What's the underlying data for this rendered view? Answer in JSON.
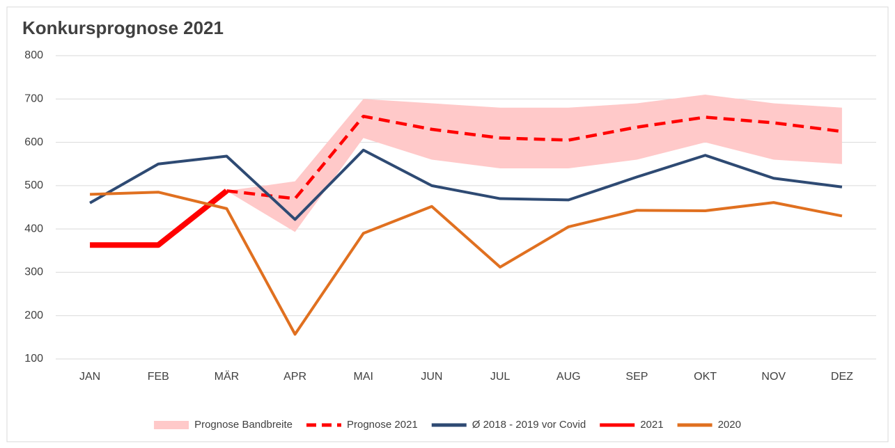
{
  "chart_data": {
    "type": "line",
    "title": "Konkursprognose 2021",
    "categories": [
      "JAN",
      "FEB",
      "MÄR",
      "APR",
      "MAI",
      "JUN",
      "JUL",
      "AUG",
      "SEP",
      "OKT",
      "NOV",
      "DEZ"
    ],
    "ylim": [
      100,
      800
    ],
    "yticks": [
      100,
      200,
      300,
      400,
      500,
      600,
      700,
      800
    ],
    "grid": true,
    "legend": "bottom",
    "series": [
      {
        "name": "Prognose Bandbreite",
        "color": "#ffc9c9",
        "low": [
          null,
          null,
          488,
          393,
          610,
          560,
          540,
          540,
          560,
          600,
          560,
          550
        ],
        "high": [
          null,
          null,
          488,
          510,
          700,
          690,
          680,
          680,
          690,
          710,
          690,
          680
        ]
      },
      {
        "name": "Prognose 2021",
        "color": "#ff0000",
        "dashed": true,
        "values": [
          null,
          null,
          488,
          470,
          660,
          630,
          610,
          605,
          635,
          658,
          645,
          625
        ]
      },
      {
        "name": "Ø 2018 - 2019 vor Covid",
        "color": "#2e4a73",
        "values": [
          460,
          550,
          568,
          422,
          582,
          500,
          470,
          467,
          520,
          570,
          517,
          497
        ]
      },
      {
        "name": "2021",
        "color": "#ff0000",
        "values": [
          363,
          363,
          488,
          null,
          null,
          null,
          null,
          null,
          null,
          null,
          null,
          null
        ]
      },
      {
        "name": "2020",
        "color": "#e07020",
        "values": [
          480,
          485,
          447,
          157,
          390,
          452,
          312,
          405,
          443,
          442,
          461,
          430
        ]
      }
    ]
  }
}
